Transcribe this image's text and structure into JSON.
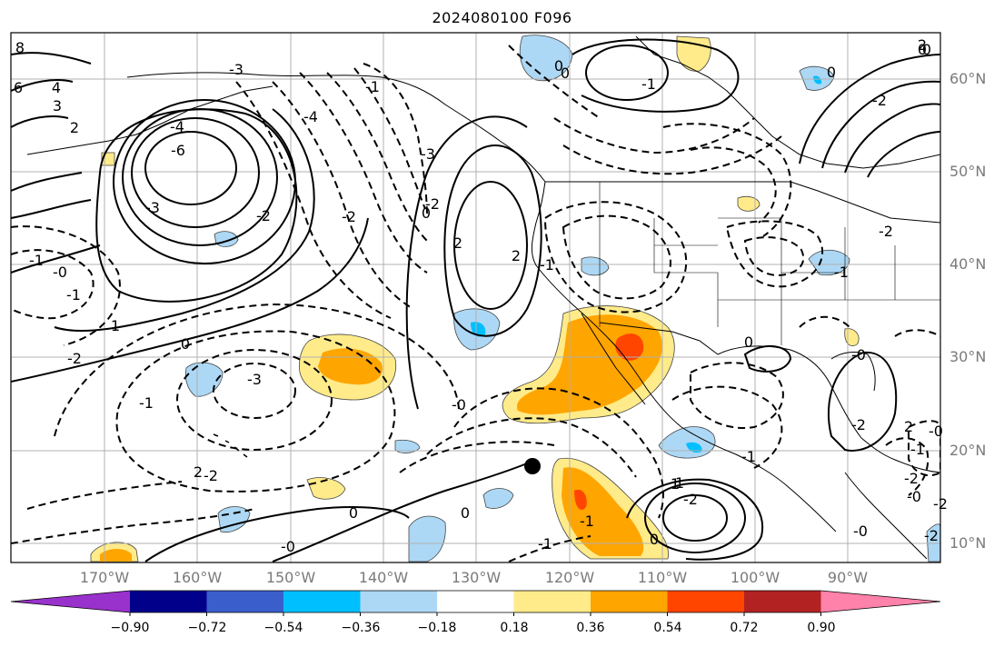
{
  "title": "2024080100 F096",
  "map": {
    "projection": "cylindrical",
    "lon_range": [
      -180,
      -80
    ],
    "lat_range": [
      8,
      65
    ],
    "gridlines": true,
    "latitude_labels": [
      "60°N",
      "50°N",
      "40°N",
      "30°N",
      "20°N",
      "10°N"
    ],
    "longitude_labels": [
      "170°W",
      "160°W",
      "150°W",
      "140°W",
      "130°W",
      "120°W",
      "110°W",
      "100°W",
      "90°W"
    ],
    "contour_labels": [
      "8",
      "6",
      "4",
      "3",
      "2",
      "-4",
      "-6",
      "-3",
      "-2",
      "-4",
      "-3",
      "-1",
      "-3",
      "2",
      "0",
      "-2",
      "-1",
      "-0",
      "-1",
      "-2",
      "0",
      "1",
      "2",
      "-3",
      "-1",
      "-2",
      "-0",
      "0",
      "-0",
      "2",
      "-2",
      "0",
      "-1",
      "1",
      "0",
      "-0",
      "-1",
      "0",
      "-1",
      "0",
      "1",
      "-1",
      "-2",
      "2",
      "-2",
      "0",
      "-2",
      "2",
      "-2",
      "0",
      "-0",
      "-1",
      "-0",
      "0",
      "0",
      "-1",
      "-2",
      "-2",
      "-0",
      "-1",
      "-2"
    ],
    "marker": "black dot"
  },
  "colorbar": {
    "ticks": [
      "−0.90",
      "−0.72",
      "−0.54",
      "−0.36",
      "−0.18",
      "0.18",
      "0.36",
      "0.54",
      "0.72",
      "0.90"
    ],
    "colors": [
      "#9932cc",
      "#00008b",
      "#3a5fcd",
      "#00bfff",
      "#add8f5",
      "#ffffff",
      "#ffeb8a",
      "#ffa500",
      "#ff4500",
      "#b22222",
      "#ff82ab"
    ]
  }
}
